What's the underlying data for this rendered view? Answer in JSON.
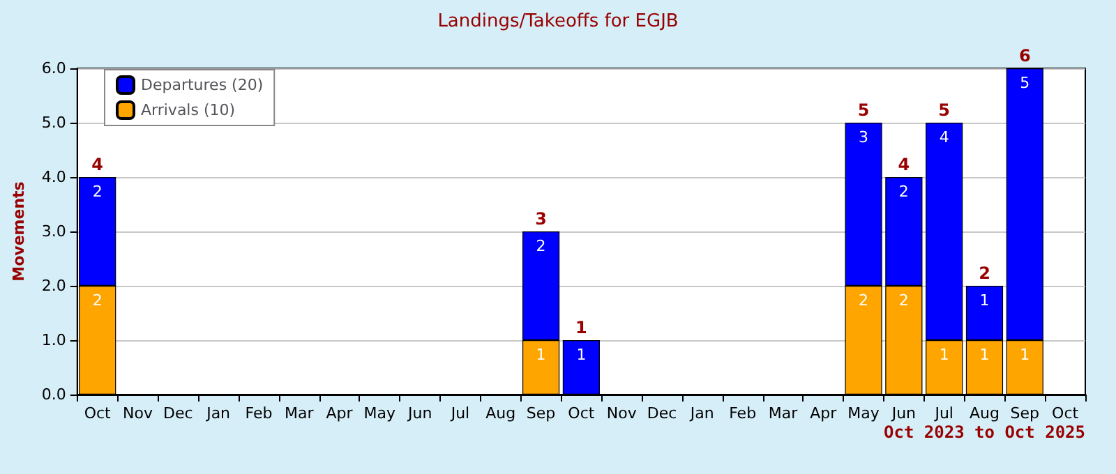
{
  "chart_data": {
    "type": "bar",
    "title": "Landings/Takeoffs for EGJB",
    "ylabel": "Movements",
    "annotations": [
      "Oct 2023 to Oct 2025"
    ],
    "categories": [
      "Oct",
      "Nov",
      "Dec",
      "Jan",
      "Feb",
      "Mar",
      "Apr",
      "May",
      "Jun",
      "Jul",
      "Aug",
      "Sep",
      "Oct",
      "Nov",
      "Dec",
      "Jan",
      "Feb",
      "Mar",
      "Apr",
      "May",
      "Jun",
      "Jul",
      "Aug",
      "Sep",
      "Oct"
    ],
    "stacked": true,
    "series": [
      {
        "name": "Arrivals (10)",
        "color": "#ffa500",
        "values": [
          2,
          0,
          0,
          0,
          0,
          0,
          0,
          0,
          0,
          0,
          0,
          1,
          0,
          0,
          0,
          0,
          0,
          0,
          0,
          2,
          2,
          1,
          1,
          1,
          0
        ],
        "value_labels": [
          "2",
          null,
          null,
          null,
          null,
          null,
          null,
          null,
          null,
          null,
          null,
          "1",
          null,
          null,
          null,
          null,
          null,
          null,
          null,
          "2",
          "2",
          "1",
          "1",
          "1",
          null
        ]
      },
      {
        "name": "Departures (20)",
        "color": "#0000ff",
        "values": [
          2,
          0,
          0,
          0,
          0,
          0,
          0,
          0,
          0,
          0,
          0,
          2,
          1,
          0,
          0,
          0,
          0,
          0,
          0,
          3,
          2,
          4,
          1,
          5,
          0
        ],
        "value_labels": [
          "2",
          null,
          null,
          null,
          null,
          null,
          null,
          null,
          null,
          null,
          null,
          "2",
          "1",
          null,
          null,
          null,
          null,
          null,
          null,
          "3",
          "2",
          "4",
          "1",
          "5",
          null
        ]
      }
    ],
    "totals": [
      "4",
      null,
      null,
      null,
      null,
      null,
      null,
      null,
      null,
      null,
      null,
      "3",
      "1",
      null,
      null,
      null,
      null,
      null,
      null,
      "5",
      "4",
      "5",
      "2",
      "6",
      null
    ],
    "ylim": [
      0,
      6
    ],
    "yticks": [
      {
        "value": 0,
        "label": "0.0"
      },
      {
        "value": 1,
        "label": "1.0"
      },
      {
        "value": 2,
        "label": "2.0"
      },
      {
        "value": 3,
        "label": "3.0"
      },
      {
        "value": 4,
        "label": "4.0"
      },
      {
        "value": 5,
        "label": "5.0"
      },
      {
        "value": 6,
        "label": "6.0"
      }
    ],
    "grid": "y",
    "legend": "top left"
  }
}
